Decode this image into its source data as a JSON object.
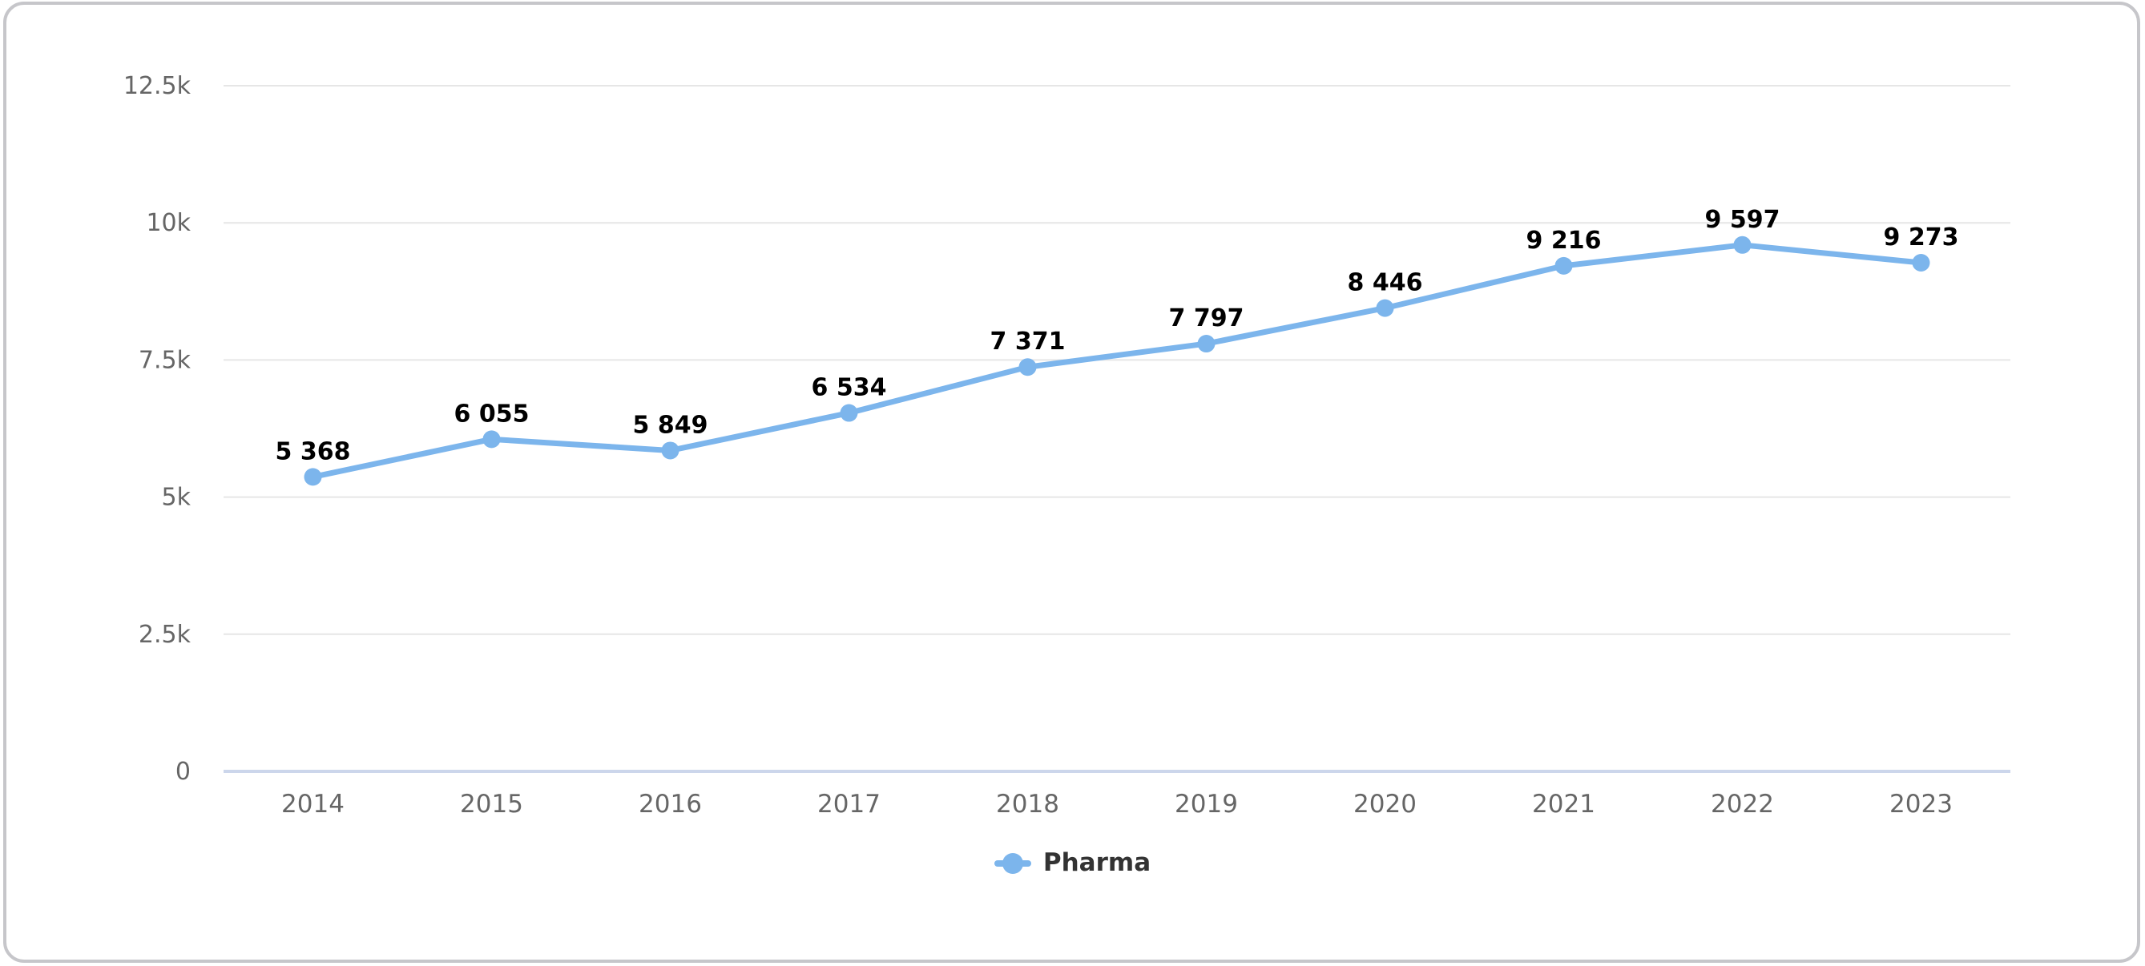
{
  "chart_data": {
    "type": "line",
    "title": "",
    "xlabel": "",
    "ylabel": "",
    "categories": [
      "2014",
      "2015",
      "2016",
      "2017",
      "2018",
      "2019",
      "2020",
      "2021",
      "2022",
      "2023"
    ],
    "series": [
      {
        "name": "Pharma",
        "values": [
          5368,
          6055,
          5849,
          6534,
          7371,
          7797,
          8446,
          9216,
          9597,
          9273
        ],
        "data_labels": [
          "5 368",
          "6 055",
          "5 849",
          "6 534",
          "7 371",
          "7 797",
          "8 446",
          "9 216",
          "9 597",
          "9 273"
        ]
      }
    ],
    "ylim": [
      0,
      12500
    ],
    "yticks": [
      {
        "value": 0,
        "label": "0"
      },
      {
        "value": 2500,
        "label": "2.5k"
      },
      {
        "value": 5000,
        "label": "5k"
      },
      {
        "value": 7500,
        "label": "7.5k"
      },
      {
        "value": 10000,
        "label": "10k"
      },
      {
        "value": 12500,
        "label": "12.5k"
      }
    ],
    "grid": "horizontal",
    "legend_position": "bottom-center",
    "marker": "circle",
    "colors": {
      "series": "#7cb5ec",
      "grid_line": "#e6e6e6",
      "axis_line": "#ccd6eb",
      "tick_label": "#666666",
      "data_label": "#000000",
      "legend_label": "#333333",
      "card_border": "#c6c6ca",
      "background": "#ffffff"
    }
  }
}
